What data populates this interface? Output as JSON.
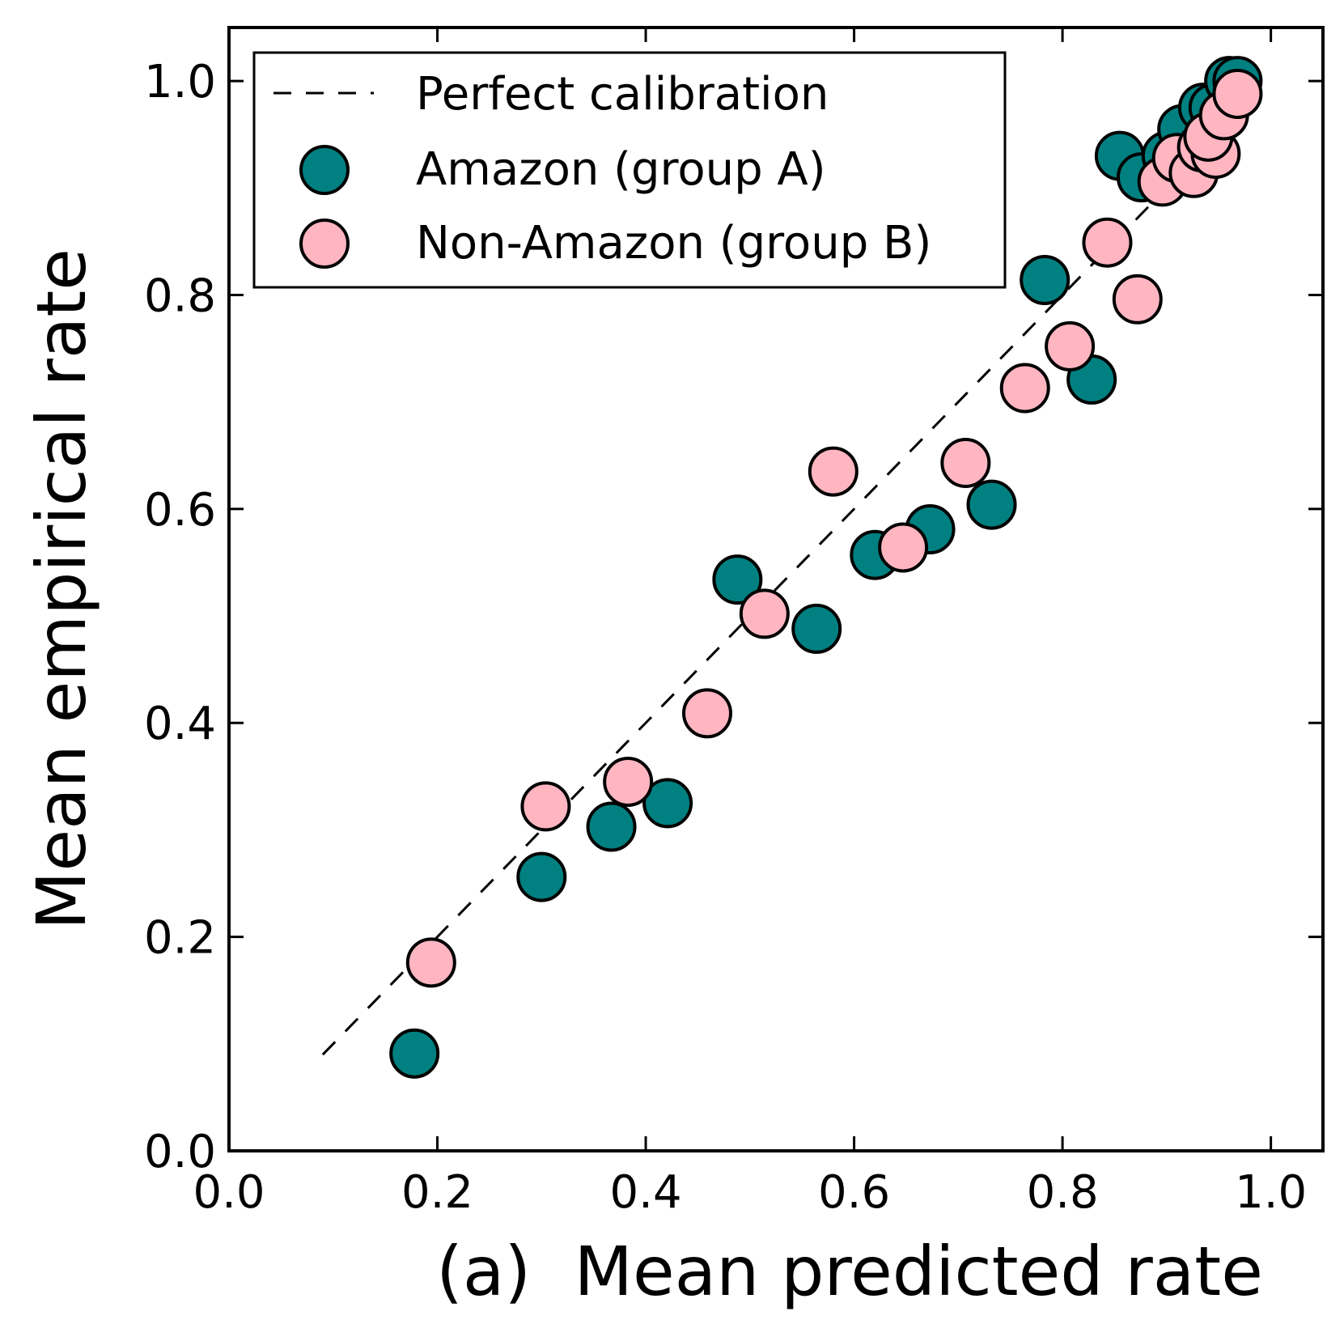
{
  "chart_data": {
    "type": "scatter",
    "title": "",
    "xlabel": "(a)  Mean predicted rate",
    "ylabel": "Mean empirical rate",
    "xlim": [
      0,
      1.05
    ],
    "ylim": [
      0,
      1.05
    ],
    "xticks": [
      "0.0",
      "0.2",
      "0.4",
      "0.6",
      "0.8",
      "1.0"
    ],
    "yticks": [
      "0.0",
      "0.2",
      "0.4",
      "0.6",
      "0.8",
      "1.0"
    ],
    "grid": false,
    "legend_position": "top-left",
    "reference_line": {
      "name": "Perfect calibration",
      "x": [
        0.09,
        1.0
      ],
      "y": [
        0.09,
        1.0
      ],
      "style": "dashed",
      "color": "#000000"
    },
    "series": [
      {
        "name": "Amazon (group A)",
        "color": "#008080",
        "x": [
          0.178,
          0.3,
          0.367,
          0.421,
          0.488,
          0.564,
          0.62,
          0.673,
          0.732,
          0.783,
          0.828,
          0.855,
          0.876,
          0.9,
          0.915,
          0.935,
          0.945,
          0.96,
          0.968
        ],
        "y": [
          0.091,
          0.256,
          0.303,
          0.325,
          0.534,
          0.488,
          0.557,
          0.581,
          0.604,
          0.814,
          0.721,
          0.93,
          0.91,
          0.93,
          0.955,
          0.975,
          0.975,
          1.0,
          1.0
        ]
      },
      {
        "name": "Non-Amazon (group B)",
        "color": "#FFB6C1",
        "x": [
          0.194,
          0.304,
          0.383,
          0.459,
          0.514,
          0.58,
          0.647,
          0.707,
          0.764,
          0.807,
          0.843,
          0.872,
          0.896,
          0.91,
          0.926,
          0.934,
          0.947,
          0.94,
          0.955,
          0.968
        ],
        "y": [
          0.176,
          0.322,
          0.345,
          0.409,
          0.502,
          0.635,
          0.564,
          0.643,
          0.713,
          0.752,
          0.849,
          0.796,
          0.906,
          0.928,
          0.914,
          0.938,
          0.932,
          0.948,
          0.968,
          0.988
        ]
      }
    ]
  }
}
